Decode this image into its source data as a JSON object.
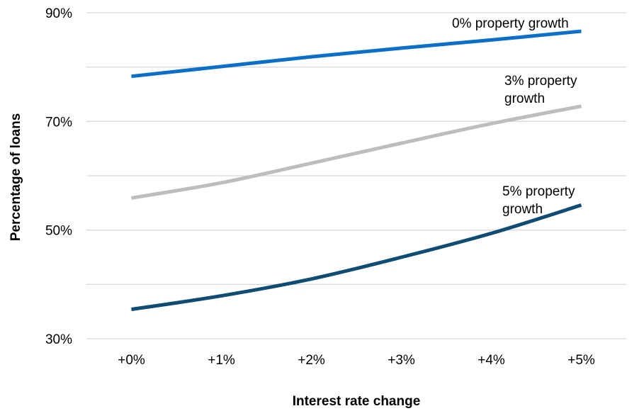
{
  "chart_data": {
    "type": "line",
    "categories": [
      "+0%",
      "+1%",
      "+2%",
      "+3%",
      "+4%",
      "+5%"
    ],
    "xlabel": "Interest rate change",
    "ylabel": "Percentage of loans",
    "ylim": [
      30,
      90
    ],
    "yticks": [
      30,
      50,
      70,
      90
    ],
    "ytick_labels": [
      "30%",
      "50%",
      "70%",
      "90%"
    ],
    "grid": true,
    "series": [
      {
        "name": "0% property growth",
        "label_lines": [
          "0% property growth"
        ],
        "color": "#0b6fc9",
        "values": [
          78.3,
          80.1,
          81.9,
          83.5,
          85.0,
          86.6
        ]
      },
      {
        "name": "3% property growth",
        "label_lines": [
          "3% property",
          "growth"
        ],
        "color": "#bdbdbd",
        "values": [
          55.9,
          58.7,
          62.3,
          66.0,
          69.6,
          72.8
        ]
      },
      {
        "name": "5% property growth",
        "label_lines": [
          "5% property",
          "growth"
        ],
        "color": "#0e4c73",
        "values": [
          35.4,
          37.9,
          41.0,
          45.0,
          49.4,
          54.6
        ]
      }
    ]
  }
}
